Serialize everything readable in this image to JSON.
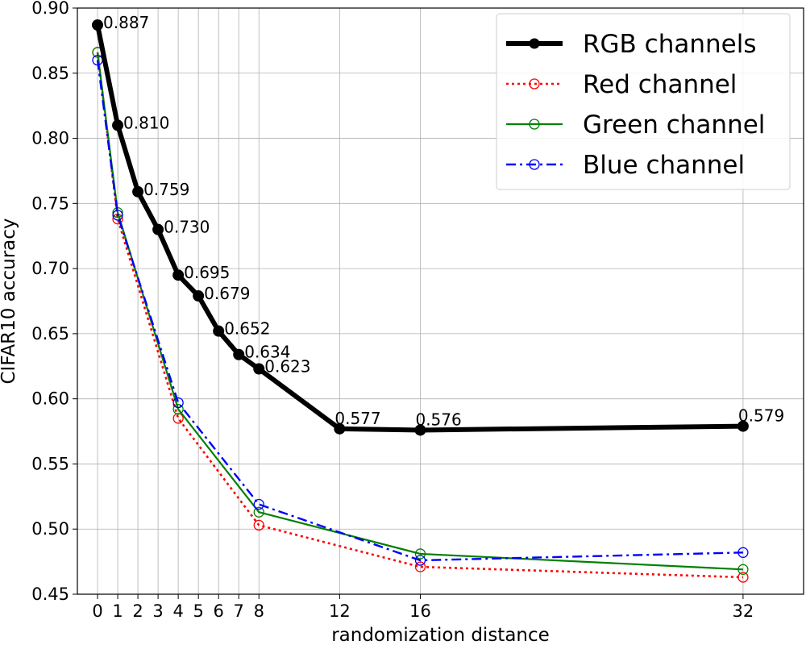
{
  "chart_data": {
    "type": "line",
    "xlabel": "randomization distance",
    "ylabel": "CIFAR10 accuracy",
    "x": [
      0,
      1,
      2,
      3,
      4,
      5,
      6,
      7,
      8,
      12,
      16,
      32
    ],
    "xticks": [
      "0",
      "1",
      "2",
      "3",
      "4",
      "5",
      "6",
      "7",
      "8",
      "12",
      "16",
      "32"
    ],
    "yticks": [
      "0.45",
      "0.50",
      "0.55",
      "0.60",
      "0.65",
      "0.70",
      "0.75",
      "0.80",
      "0.85",
      "0.90"
    ],
    "xlim": [
      -1,
      35
    ],
    "ylim": [
      0.45,
      0.9
    ],
    "grid": true,
    "legend_position": "top-right",
    "series": [
      {
        "name": "RGB channels",
        "color": "#000000",
        "style": "solid-thick",
        "marker": "filled-circle",
        "x": [
          0,
          1,
          2,
          3,
          4,
          5,
          6,
          7,
          8,
          12,
          16,
          32
        ],
        "values": [
          0.887,
          0.81,
          0.759,
          0.73,
          0.695,
          0.679,
          0.652,
          0.634,
          0.623,
          0.577,
          0.576,
          0.579
        ],
        "labels": [
          "0.887",
          "0.810",
          "0.759",
          "0.730",
          "0.695",
          "0.679",
          "0.652",
          "0.634",
          "0.623",
          "0.577",
          "0.576",
          "0.579"
        ]
      },
      {
        "name": "Red channel",
        "color": "#ff0000",
        "style": "dotted",
        "marker": "open-circle",
        "x": [
          0,
          1,
          4,
          8,
          16,
          32
        ],
        "values": [
          0.866,
          0.738,
          0.585,
          0.503,
          0.471,
          0.463
        ]
      },
      {
        "name": "Green channel",
        "color": "#008000",
        "style": "solid",
        "marker": "open-circle",
        "x": [
          0,
          1,
          4,
          8,
          16,
          32
        ],
        "values": [
          0.866,
          0.743,
          0.592,
          0.513,
          0.481,
          0.469
        ]
      },
      {
        "name": "Blue channel",
        "color": "#0000ff",
        "style": "dashdot",
        "marker": "open-circle",
        "x": [
          0,
          1,
          4,
          8,
          16,
          32
        ],
        "values": [
          0.86,
          0.741,
          0.597,
          0.519,
          0.476,
          0.482
        ]
      }
    ]
  }
}
